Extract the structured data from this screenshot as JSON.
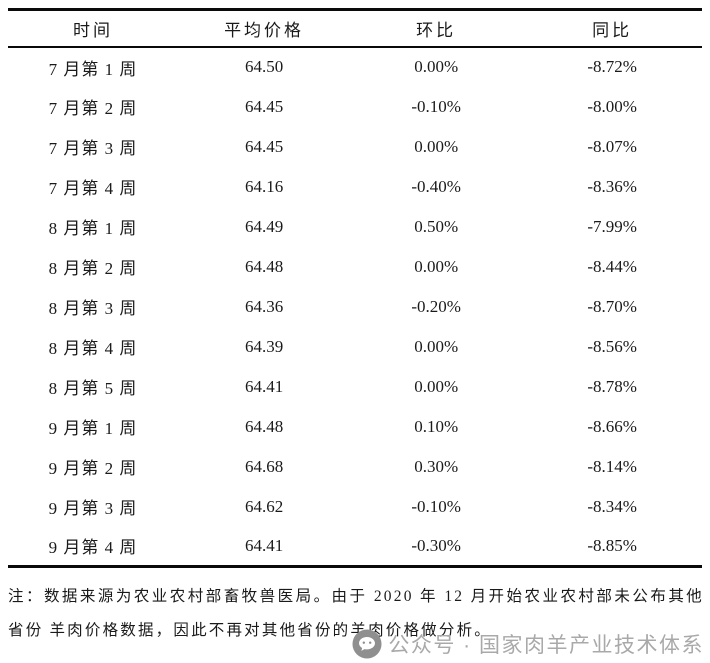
{
  "table": {
    "headers": [
      "时间",
      "平均价格",
      "环比",
      "同比"
    ],
    "rows": [
      {
        "time": "7 月第 1 周",
        "price": "64.50",
        "mom": "0.00%",
        "yoy": "-8.72%"
      },
      {
        "time": "7 月第 2 周",
        "price": "64.45",
        "mom": "-0.10%",
        "yoy": "-8.00%"
      },
      {
        "time": "7 月第 3 周",
        "price": "64.45",
        "mom": "0.00%",
        "yoy": "-8.07%"
      },
      {
        "time": "7 月第 4 周",
        "price": "64.16",
        "mom": "-0.40%",
        "yoy": "-8.36%"
      },
      {
        "time": "8 月第 1 周",
        "price": "64.49",
        "mom": "0.50%",
        "yoy": "-7.99%"
      },
      {
        "time": "8 月第 2 周",
        "price": "64.48",
        "mom": "0.00%",
        "yoy": "-8.44%"
      },
      {
        "time": "8 月第 3 周",
        "price": "64.36",
        "mom": "-0.20%",
        "yoy": "-8.70%"
      },
      {
        "time": "8 月第 4 周",
        "price": "64.39",
        "mom": "0.00%",
        "yoy": "-8.56%"
      },
      {
        "time": "8 月第 5 周",
        "price": "64.41",
        "mom": "0.00%",
        "yoy": "-8.78%"
      },
      {
        "time": "9 月第 1 周",
        "price": "64.48",
        "mom": "0.10%",
        "yoy": "-8.66%"
      },
      {
        "time": "9 月第 2 周",
        "price": "64.68",
        "mom": "0.30%",
        "yoy": "-8.14%"
      },
      {
        "time": "9 月第 3 周",
        "price": "64.62",
        "mom": "-0.10%",
        "yoy": "-8.34%"
      },
      {
        "time": "9 月第 4 周",
        "price": "64.41",
        "mom": "-0.30%",
        "yoy": "-8.85%"
      }
    ]
  },
  "note": {
    "line1": "注：数据来源为农业农村部畜牧兽医局。由于 2020 年 12 月开始农业农村部未公布其他省份",
    "line2": "羊肉价格数据，因此不再对其他省份的羊肉价格做分析。"
  },
  "watermark": {
    "icon": "wechat-bubble-icon",
    "text": "公众号 · 国家肉羊产业技术体系",
    "color": "#a9a9a9"
  },
  "colors": {
    "background": "#ffffff",
    "text": "#1a1a1a",
    "rule": "#0a0a0a",
    "watermark_gray": "#8f8f8f"
  },
  "chart_data": {
    "type": "table",
    "title": "",
    "columns": [
      "时间",
      "平均价格",
      "环比",
      "同比"
    ],
    "categories": [
      "7月第1周",
      "7月第2周",
      "7月第3周",
      "7月第4周",
      "8月第1周",
      "8月第2周",
      "8月第3周",
      "8月第4周",
      "8月第5周",
      "9月第1周",
      "9月第2周",
      "9月第3周",
      "9月第4周"
    ],
    "series": [
      {
        "name": "平均价格",
        "values": [
          64.5,
          64.45,
          64.45,
          64.16,
          64.49,
          64.48,
          64.36,
          64.39,
          64.41,
          64.48,
          64.68,
          64.62,
          64.41
        ]
      },
      {
        "name": "环比(%)",
        "values": [
          0.0,
          -0.1,
          0.0,
          -0.4,
          0.5,
          0.0,
          -0.2,
          0.0,
          0.0,
          0.1,
          0.3,
          -0.1,
          -0.3
        ]
      },
      {
        "name": "同比(%)",
        "values": [
          -8.72,
          -8.0,
          -8.07,
          -8.36,
          -7.99,
          -8.44,
          -8.7,
          -8.56,
          -8.78,
          -8.66,
          -8.14,
          -8.34,
          -8.85
        ]
      }
    ]
  }
}
